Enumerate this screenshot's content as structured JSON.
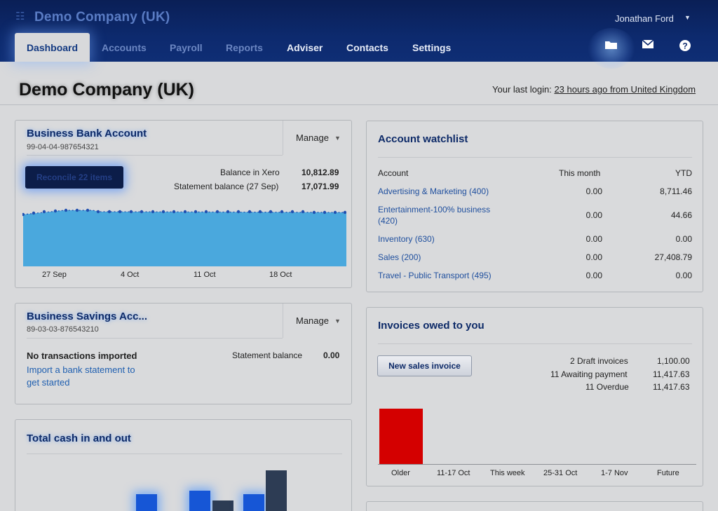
{
  "header": {
    "org_name": "Demo Company (UK)",
    "user_name": "Jonathan Ford",
    "tabs": [
      {
        "label": "Dashboard"
      },
      {
        "label": "Accounts"
      },
      {
        "label": "Payroll"
      },
      {
        "label": "Reports"
      },
      {
        "label": "Adviser"
      },
      {
        "label": "Contacts"
      },
      {
        "label": "Settings"
      }
    ],
    "icons": {
      "files": "folder-icon",
      "mail": "mail-icon",
      "help": "help-icon"
    }
  },
  "page": {
    "title": "Demo Company (UK)",
    "last_login_prefix": "Your last login:",
    "last_login_link": "23 hours ago from United Kingdom"
  },
  "bank_account": {
    "title": "Business Bank Account",
    "number": "99-04-04-987654321",
    "manage_label": "Manage",
    "reconcile_label": "Reconcile 22 items",
    "balance_label": "Balance in Xero",
    "balance_value": "10,812.89",
    "statement_label": "Statement balance (27 Sep)",
    "statement_value": "17,071.99",
    "chart_xlabels": [
      "27 Sep",
      "4 Oct",
      "11 Oct",
      "18 Oct"
    ]
  },
  "savings_account": {
    "title": "Business Savings Acc...",
    "number": "89-03-03-876543210",
    "manage_label": "Manage",
    "no_tx": "No transactions imported",
    "import_link_line1": "Import a bank statement to",
    "import_link_line2": "get started",
    "statement_label": "Statement balance",
    "statement_value": "0.00"
  },
  "cash": {
    "title": "Total cash in and out"
  },
  "watchlist": {
    "title": "Account watchlist",
    "headers": {
      "account": "Account",
      "month": "This month",
      "ytd": "YTD"
    },
    "rows": [
      {
        "account": "Advertising & Marketing (400)",
        "month": "0.00",
        "ytd": "8,711.46"
      },
      {
        "account_line1": "Entertainment-100% business",
        "account_line2": "(420)",
        "month": "0.00",
        "ytd": "44.66"
      },
      {
        "account": "Inventory (630)",
        "month": "0.00",
        "ytd": "0.00"
      },
      {
        "account": "Sales (200)",
        "month": "0.00",
        "ytd": "27,408.79"
      },
      {
        "account": "Travel - Public Transport (495)",
        "month": "0.00",
        "ytd": "0.00"
      }
    ]
  },
  "invoices": {
    "title": "Invoices owed to you",
    "new_invoice_label": "New sales invoice",
    "draft_label": "2 Draft invoices",
    "draft_value": "1,100.00",
    "awaiting_label": "11 Awaiting payment",
    "awaiting_value": "11,417.63",
    "overdue_label": "11 Overdue",
    "overdue_value": "11,417.63",
    "bar_color": "#d40000",
    "chart_xlabels": [
      "Older",
      "11-17 Oct",
      "This week",
      "25-31 Oct",
      "1-7 Nov",
      "Future"
    ]
  }
}
